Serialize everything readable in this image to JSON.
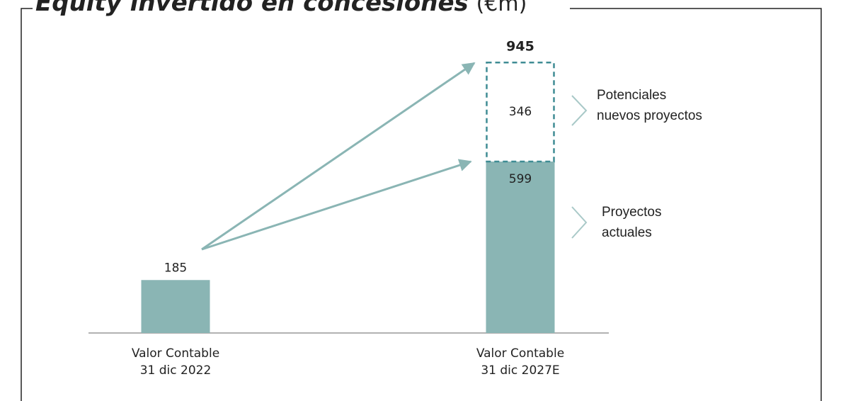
{
  "chart_data": {
    "type": "stacked-bar",
    "title": "Equity invertido en concesiones",
    "title_unit": "(€m)",
    "categories": [
      "Valor Contable\n31 dic 2022",
      "Valor Contable\n31 dic 2027E"
    ],
    "series": [
      {
        "name": "Proyectos\nactuales",
        "color": "#8ab5b4",
        "values": [
          185,
          599
        ]
      },
      {
        "name": "Potenciales\nnuevos proyectos",
        "color": "#3f8c94",
        "dashed": true,
        "values": [
          null,
          346
        ]
      }
    ],
    "totals": [
      null,
      945
    ],
    "ylim": [
      0,
      1000
    ]
  }
}
